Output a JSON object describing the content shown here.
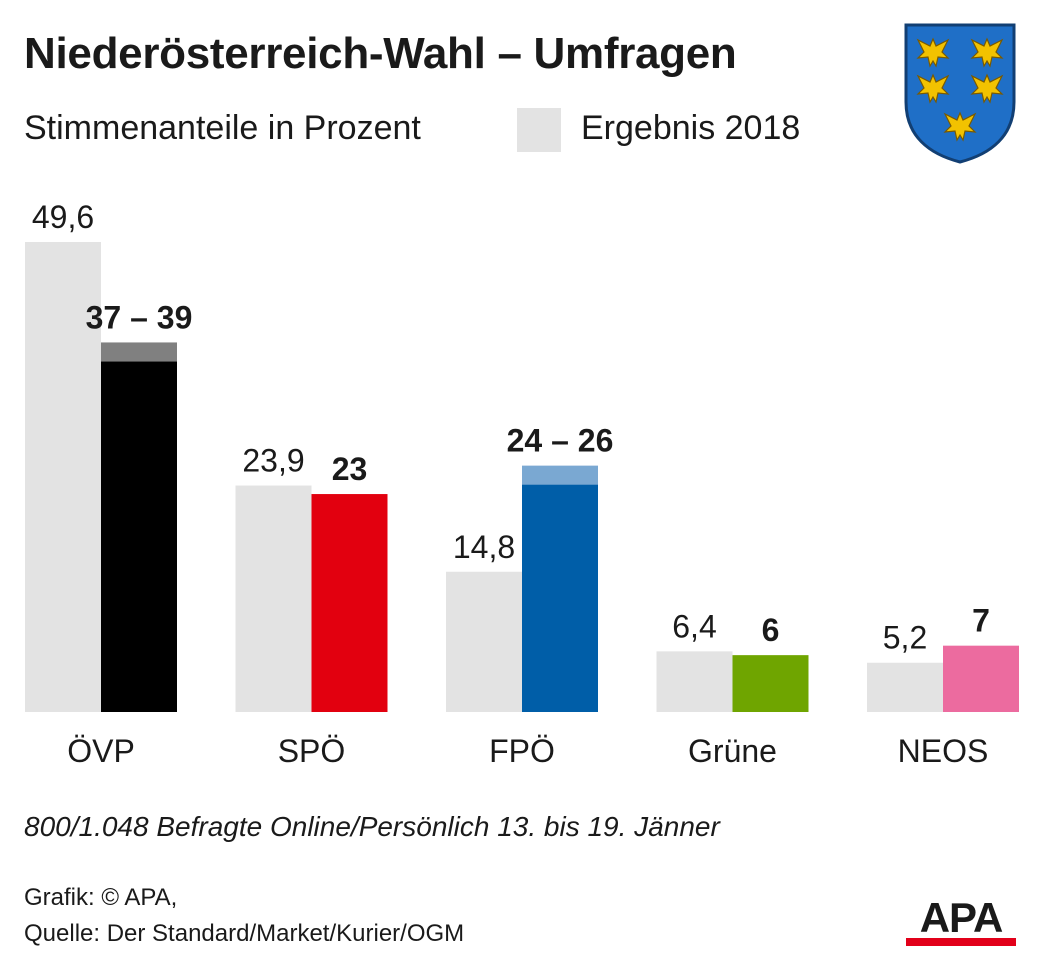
{
  "header": {
    "title": "Niederösterreich-Wahl – Umfragen",
    "subtitle": "Stimmenanteile in Prozent",
    "legend_label": "Ergebnis 2018",
    "legend_color": "#e3e3e3"
  },
  "footer": {
    "note": "800/1.048 Befragte Online/Persönlich 13. bis 19. Jänner",
    "credit": "Grafik: © APA,",
    "source": "Quelle: Der Standard/Market/Kurier/OGM",
    "logo_text": "APA"
  },
  "crest": {
    "icon": "lower-austria-crest-icon"
  },
  "chart_data": {
    "type": "bar",
    "categories": [
      "ÖVP",
      "SPÖ",
      "FPÖ",
      "Grüne",
      "NEOS"
    ],
    "series": [
      {
        "name": "Ergebnis 2018",
        "color": "#e3e3e3",
        "values": [
          49.6,
          23.9,
          14.8,
          6.4,
          5.2
        ],
        "labels": [
          "49,6",
          "23,9",
          "14,8",
          "6,4",
          "5,2"
        ]
      },
      {
        "values": [
          [
            37,
            39
          ],
          [
            23,
            23
          ],
          [
            24,
            26
          ],
          [
            6,
            6
          ],
          [
            7,
            7
          ]
        ],
        "labels": [
          "37 – 39",
          "23",
          "24 – 26",
          "6",
          "7"
        ],
        "colors": [
          "#000000",
          "#e2000f",
          "#005ea8",
          "#6fa500",
          "#ec6b9f"
        ],
        "range_colors": [
          "#808080",
          "#f07a7a",
          "#7aa8d2",
          "#b3d27f",
          "#f5b5cf"
        ]
      }
    ],
    "ylim": [
      0,
      49.6
    ],
    "grid": false,
    "legend": "top"
  }
}
